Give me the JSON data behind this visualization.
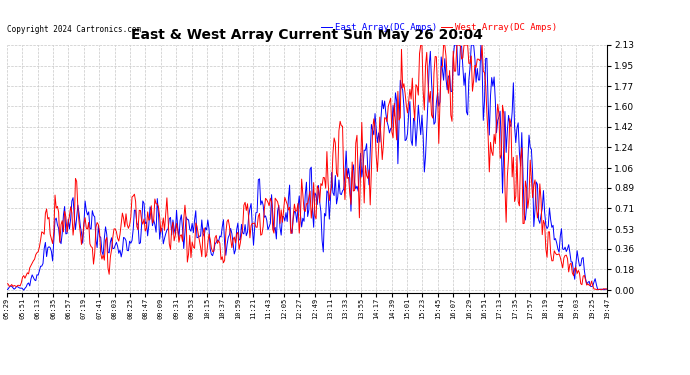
{
  "title": "East & West Array Current Sun May 26 20:04",
  "copyright": "Copyright 2024 Cartronics.com",
  "legend_east": "East Array(DC Amps)",
  "legend_west": "West Array(DC Amps)",
  "east_color": "#0000ff",
  "west_color": "#ff0000",
  "background_color": "#ffffff",
  "grid_color": "#c8c8c8",
  "yticks": [
    0.0,
    0.18,
    0.36,
    0.53,
    0.71,
    0.89,
    1.06,
    1.24,
    1.42,
    1.6,
    1.77,
    1.95,
    2.13
  ],
  "ylim": [
    -0.02,
    2.13
  ],
  "xtick_labels": [
    "05:29",
    "05:51",
    "06:13",
    "06:35",
    "06:57",
    "07:19",
    "07:41",
    "08:03",
    "08:25",
    "08:47",
    "09:09",
    "09:31",
    "09:53",
    "10:15",
    "10:37",
    "10:59",
    "11:21",
    "11:43",
    "12:05",
    "12:27",
    "12:49",
    "13:11",
    "13:33",
    "13:55",
    "14:17",
    "14:39",
    "15:01",
    "15:23",
    "15:45",
    "16:07",
    "16:29",
    "16:51",
    "17:13",
    "17:35",
    "17:57",
    "18:19",
    "18:41",
    "19:03",
    "19:25",
    "19:47"
  ]
}
